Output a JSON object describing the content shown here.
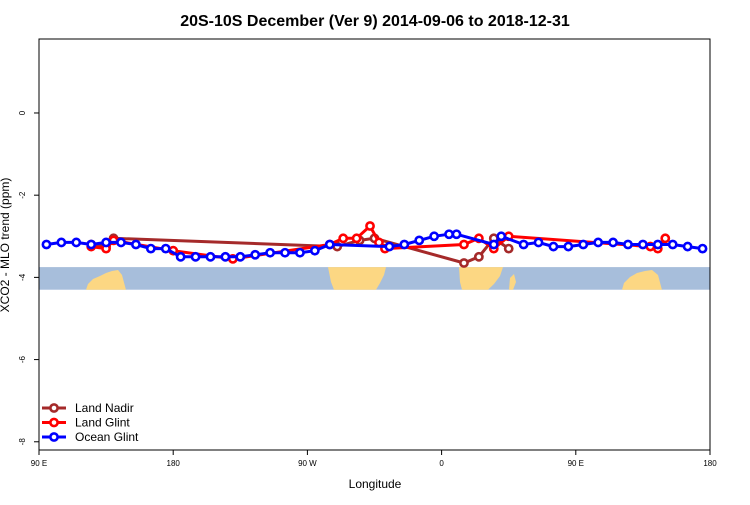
{
  "chart_data": {
    "type": "line",
    "title": "20S-10S December (Ver 9)   2014-09-06 to 2018-12-31",
    "xlabel": "Longitude",
    "ylabel": "XCO2 - MLO trend (ppm)",
    "xlim": [
      90,
      540
    ],
    "ylim": [
      -8.2,
      1.8
    ],
    "x_ticks": [
      {
        "value": 90,
        "label": "90 E"
      },
      {
        "value": 180,
        "label": "180"
      },
      {
        "value": 270,
        "label": "90 W"
      },
      {
        "value": 360,
        "label": "0"
      },
      {
        "value": 450,
        "label": "90 E"
      },
      {
        "value": 540,
        "label": "180"
      }
    ],
    "y_ticks": [
      {
        "value": 0,
        "label": "0"
      },
      {
        "value": -2,
        "label": "-2"
      },
      {
        "value": -4,
        "label": "-4"
      },
      {
        "value": -6,
        "label": "-6"
      },
      {
        "value": -8,
        "label": "-8"
      }
    ],
    "grid": false,
    "legend_position": "bottom-left",
    "map_strip": {
      "y_top": -3.75,
      "y_bottom": -4.3,
      "ocean_color": "#a7bedb",
      "land_color": "#fcd783"
    },
    "series": [
      {
        "name": "Land Nadir",
        "color": "#a52a2a",
        "x": [
          125,
          135,
          140,
          290,
          305,
          315,
          375,
          385,
          395,
          405
        ],
        "y": [
          -3.2,
          -3.25,
          -3.05,
          -3.25,
          -3.1,
          -3.05,
          -3.65,
          -3.5,
          -3.05,
          -3.3
        ]
      },
      {
        "name": "Land Glint",
        "color": "#ff0000",
        "x": [
          125,
          135,
          140,
          180,
          220,
          285,
          294,
          303,
          312,
          318,
          322,
          375,
          385,
          395,
          405,
          500,
          505,
          510
        ],
        "y": [
          -3.25,
          -3.3,
          -3.1,
          -3.35,
          -3.55,
          -3.2,
          -3.05,
          -3.05,
          -2.75,
          -3.15,
          -3.3,
          -3.2,
          -3.05,
          -3.3,
          -3.0,
          -3.25,
          -3.3,
          -3.05
        ]
      },
      {
        "name": "Ocean Glint",
        "color": "#0000ff",
        "x": [
          95,
          105,
          115,
          125,
          135,
          145,
          155,
          165,
          175,
          185,
          195,
          205,
          215,
          225,
          235,
          245,
          255,
          265,
          275,
          285,
          325,
          335,
          345,
          355,
          365,
          370,
          395,
          400,
          415,
          425,
          435,
          445,
          455,
          465,
          475,
          485,
          495,
          505,
          515,
          525,
          535
        ],
        "y": [
          -3.2,
          -3.15,
          -3.15,
          -3.2,
          -3.15,
          -3.15,
          -3.2,
          -3.3,
          -3.3,
          -3.5,
          -3.5,
          -3.5,
          -3.5,
          -3.5,
          -3.45,
          -3.4,
          -3.4,
          -3.4,
          -3.35,
          -3.2,
          -3.25,
          -3.2,
          -3.1,
          -3.0,
          -2.95,
          -2.95,
          -3.2,
          -3.0,
          -3.2,
          -3.15,
          -3.25,
          -3.25,
          -3.2,
          -3.15,
          -3.15,
          -3.2,
          -3.2,
          -3.2,
          -3.2,
          -3.25,
          -3.3
        ]
      }
    ]
  }
}
